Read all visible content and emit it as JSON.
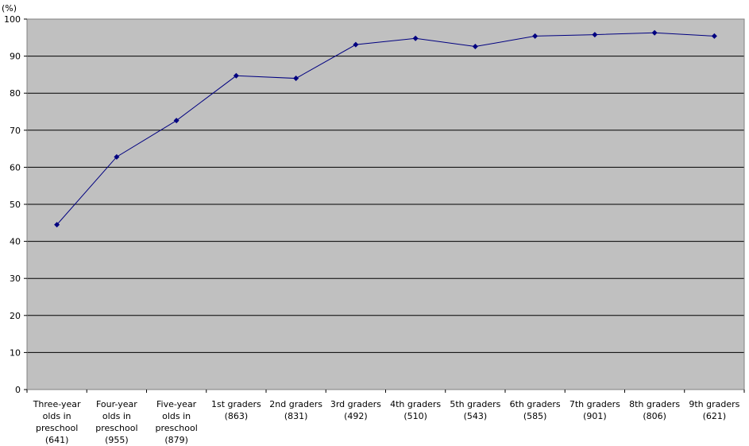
{
  "chart_data": {
    "type": "line",
    "y_unit_label": "(%)",
    "ylim": [
      0,
      100
    ],
    "y_ticks": [
      0,
      10,
      20,
      30,
      40,
      50,
      60,
      70,
      80,
      90,
      100
    ],
    "grid": true,
    "legend": "none",
    "categories": [
      [
        "Three-year",
        "olds in",
        "preschool",
        "(641)"
      ],
      [
        "Four-year",
        "olds in",
        "preschool",
        "(955)"
      ],
      [
        "Five-year",
        "olds in",
        "preschool",
        "(879)"
      ],
      [
        "1st graders",
        "(863)"
      ],
      [
        "2nd graders",
        "(831)"
      ],
      [
        "3rd graders",
        "(492)"
      ],
      [
        "4th graders",
        "(510)"
      ],
      [
        "5th graders",
        "(543)"
      ],
      [
        "6th graders",
        "(585)"
      ],
      [
        "7th graders",
        "(901)"
      ],
      [
        "8th graders",
        "(806)"
      ],
      [
        "9th graders",
        "(621)"
      ]
    ],
    "series": [
      {
        "values": [
          44.5,
          62.8,
          72.6,
          84.7,
          84.0,
          93.1,
          94.8,
          92.6,
          95.4,
          95.8,
          96.3,
          95.4
        ]
      }
    ],
    "colors": {
      "plot_bg": "#c0c0c0",
      "grid": "#000000",
      "line": "#000080",
      "marker": "#000080"
    }
  }
}
